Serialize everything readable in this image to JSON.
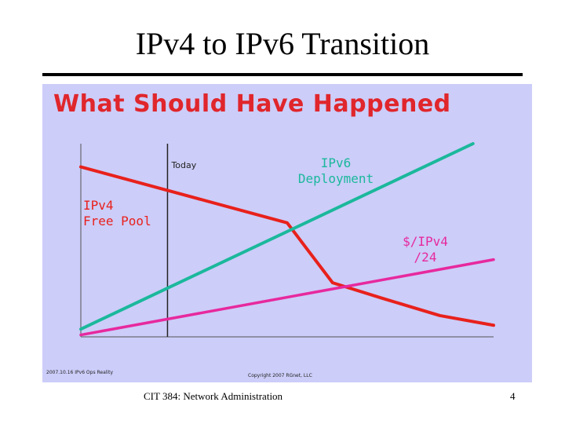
{
  "slide": {
    "title": "IPv4 to IPv6 Transition",
    "footer": "CIT 384: Network Administration",
    "page_number": "4"
  },
  "panel": {
    "title": "What Should Have Happened",
    "footer_left": "2007.10.16 IPv6 Ops Reality",
    "footer_right": "Copyright 2007 RGnet, LLC"
  },
  "chart_data": {
    "type": "line",
    "title": "What Should Have Happened",
    "xlabel": "",
    "ylabel": "",
    "xlim": [
      0,
      100
    ],
    "ylim": [
      0,
      100
    ],
    "grid": false,
    "annotations": [
      {
        "name": "today-line",
        "type": "vline",
        "x": 21,
        "label": "Today",
        "color": "#222222"
      }
    ],
    "series": [
      {
        "name": "IPv4 Free Pool",
        "color": "#e8211c",
        "label_lines": [
          "IPv4",
          "Free Pool"
        ],
        "x": [
          0,
          50,
          61,
          73,
          87,
          100
        ],
        "y": [
          88,
          59,
          28,
          20,
          11,
          6
        ]
      },
      {
        "name": "IPv6 Deployment",
        "color": "#1bb89c",
        "label_lines": [
          "IPv6",
          "Deployment"
        ],
        "x": [
          0,
          95
        ],
        "y": [
          4,
          100
        ]
      },
      {
        "name": "$/IPv4 /24",
        "color": "#e7299e",
        "label_lines": [
          "$/IPv4",
          "/24"
        ],
        "x": [
          0,
          100
        ],
        "y": [
          1,
          40
        ]
      }
    ]
  }
}
